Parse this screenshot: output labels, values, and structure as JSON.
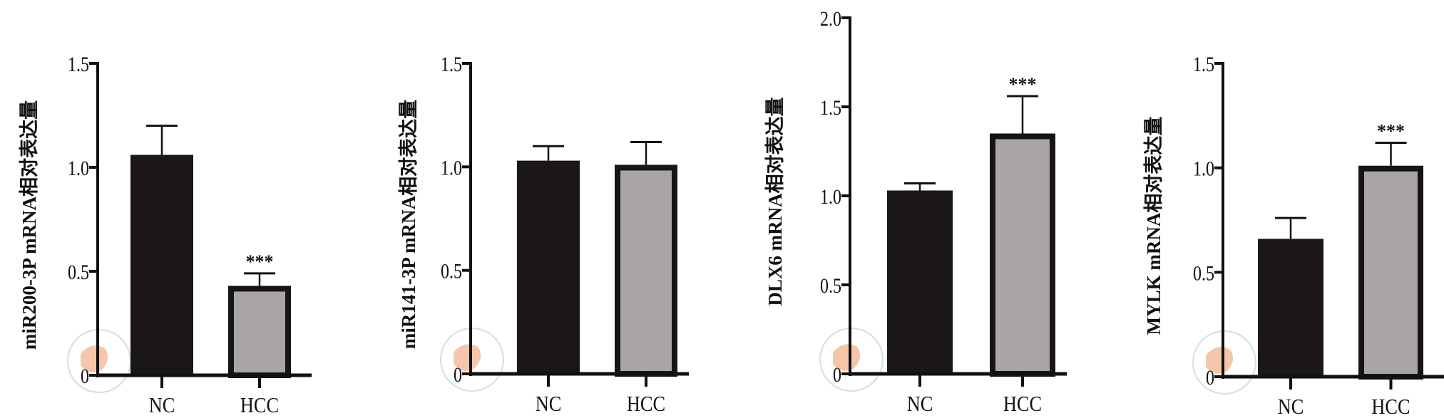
{
  "chart_data": [
    {
      "type": "bar",
      "title": "",
      "xlabel": "",
      "ylabel": "miR200-3P mRNA相对表达量",
      "categories": [
        "NC",
        "HCC"
      ],
      "values": [
        1.06,
        0.43
      ],
      "error_upper": [
        1.2,
        0.49
      ],
      "significance": [
        "",
        "***"
      ],
      "yticks": [
        "0",
        "0.5",
        "1.0",
        "1.5"
      ],
      "ylim": [
        0,
        1.5
      ]
    },
    {
      "type": "bar",
      "title": "",
      "xlabel": "",
      "ylabel": "miR141-3P mRNA相对表达量",
      "categories": [
        "NC",
        "HCC"
      ],
      "values": [
        1.03,
        1.01
      ],
      "error_upper": [
        1.1,
        1.12
      ],
      "significance": [
        "",
        ""
      ],
      "yticks": [
        "0",
        "0.5",
        "1.0",
        "1.5"
      ],
      "ylim": [
        0,
        1.5
      ]
    },
    {
      "type": "bar",
      "title": "",
      "xlabel": "",
      "ylabel": "DLX6 mRNA相对表达量",
      "categories": [
        "NC",
        "HCC"
      ],
      "values": [
        1.03,
        1.35
      ],
      "error_upper": [
        1.07,
        1.56
      ],
      "significance": [
        "",
        "***"
      ],
      "yticks": [
        "0",
        "0.5",
        "1.0",
        "1.5",
        "2.0"
      ],
      "ylim": [
        0,
        2.0
      ]
    },
    {
      "type": "bar",
      "title": "",
      "xlabel": "",
      "ylabel": "MYLK mRNA相对表达量",
      "categories": [
        "NC",
        "HCC"
      ],
      "values": [
        0.66,
        1.01
      ],
      "error_upper": [
        0.76,
        1.12
      ],
      "significance": [
        "",
        "***"
      ],
      "yticks": [
        "0",
        "0.5",
        "1.0",
        "1.5"
      ],
      "ylim": [
        0,
        1.5
      ]
    }
  ],
  "colors": {
    "nc": "#1a1716",
    "hcc": "#aaa4a4",
    "axis": "#111111"
  }
}
